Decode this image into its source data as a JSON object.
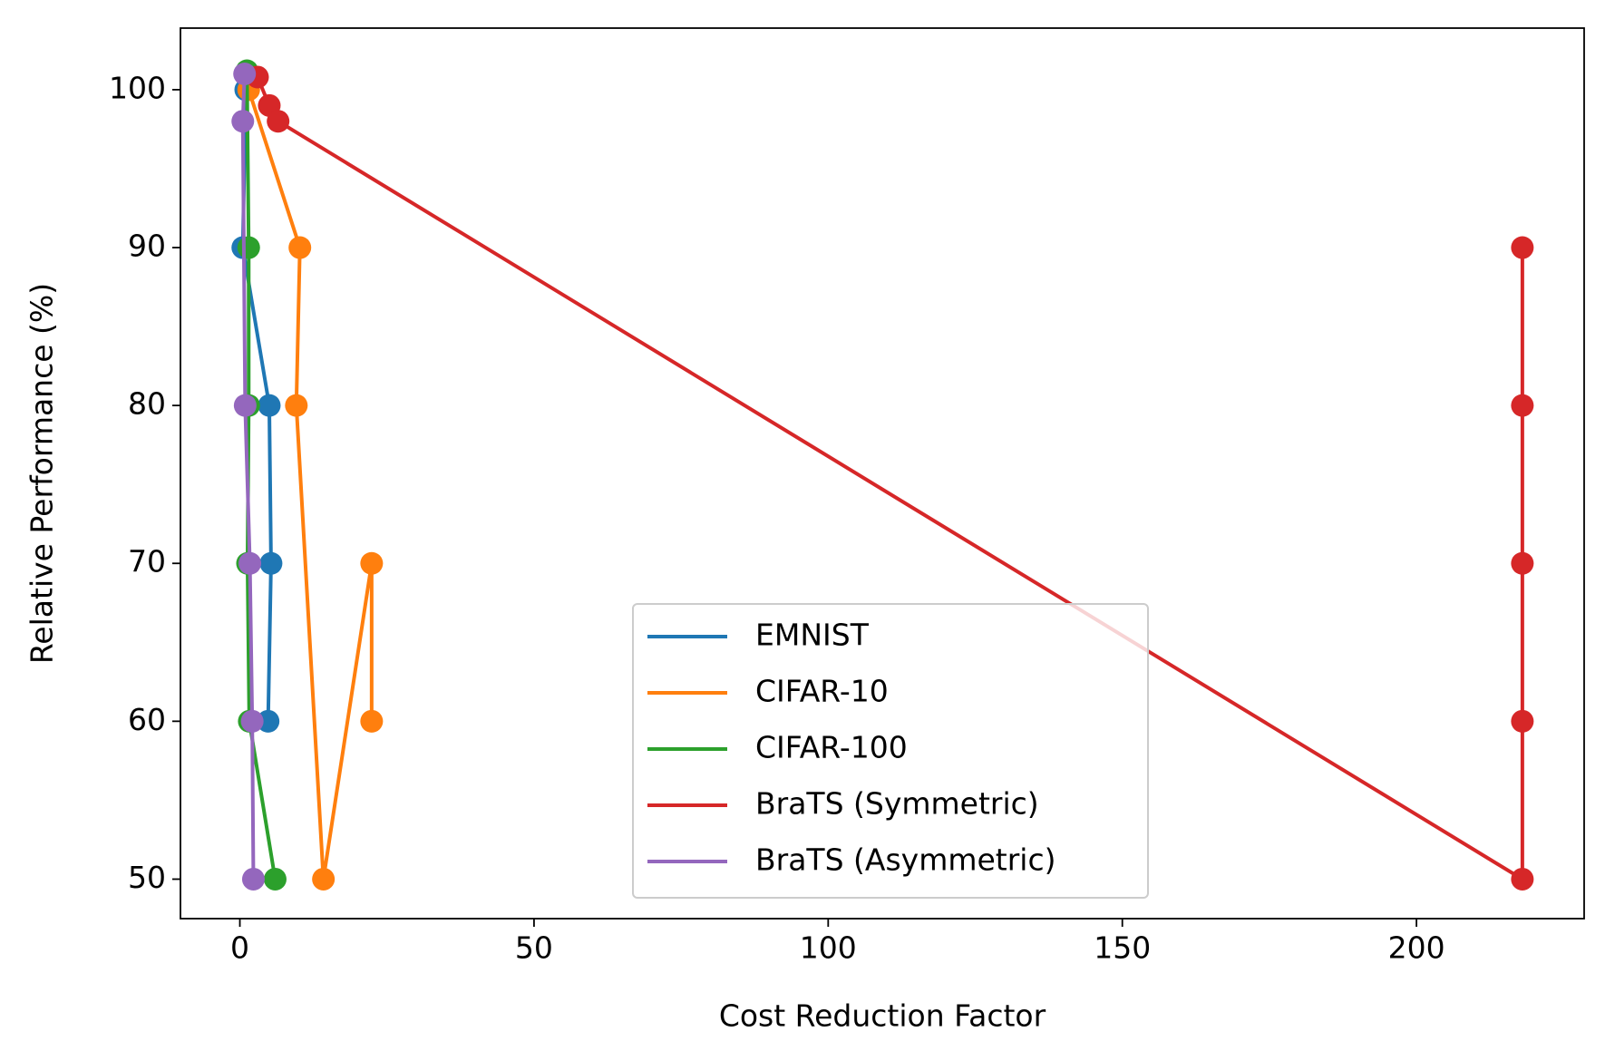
{
  "chart_data": {
    "type": "line",
    "x_label": "Cost Reduction Factor",
    "y_label": "Relative Performance (%)",
    "xlim": [
      -10.1,
      228.5
    ],
    "ylim": [
      47.5,
      103.9
    ],
    "xticks": [
      0,
      50,
      100,
      150,
      200
    ],
    "yticks": [
      50,
      60,
      70,
      80,
      90,
      100
    ],
    "legend": "lower center",
    "series": [
      {
        "name": "EMNIST",
        "color": "#1f77b4",
        "x": [
          1,
          0.5,
          5,
          5.3,
          4.8
        ],
        "values": [
          100,
          90,
          80,
          70,
          60
        ]
      },
      {
        "name": "CIFAR-10",
        "color": "#ff7f0e",
        "x": [
          1.5,
          10.2,
          9.6,
          14.2,
          22.4,
          22.4
        ],
        "values": [
          100,
          90,
          80,
          50,
          70,
          60
        ]
      },
      {
        "name": "CIFAR-100",
        "color": "#2ca02c",
        "x": [
          1.2,
          1.5,
          1.5,
          1.3,
          1.6,
          6
        ],
        "values": [
          101.2,
          90,
          80,
          70,
          60,
          50
        ]
      },
      {
        "name": "BraTS (Symmetric)",
        "color": "#d62728",
        "x": [
          3,
          5,
          6.5,
          218,
          218,
          218,
          218,
          218
        ],
        "values": [
          100.8,
          99,
          98,
          50,
          60,
          70,
          80,
          90
        ]
      },
      {
        "name": "BraTS (Asymmetric)",
        "color": "#9467bd",
        "x": [
          0.8,
          0.5,
          0.9,
          1.7,
          2.1,
          2.3
        ],
        "values": [
          101,
          98,
          80,
          70,
          60,
          50
        ]
      }
    ]
  }
}
